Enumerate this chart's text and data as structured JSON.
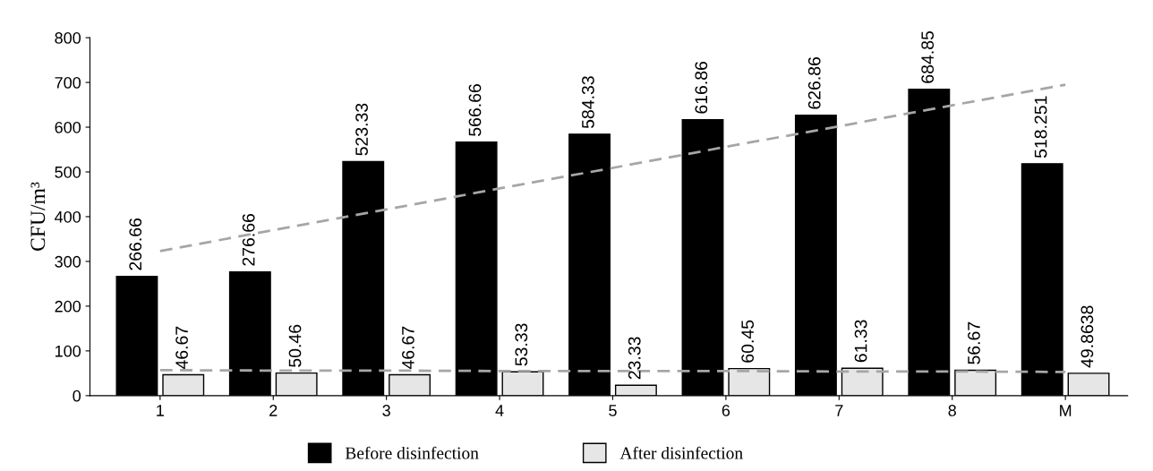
{
  "chart_data": {
    "type": "bar",
    "ylabel": "CFU/m³",
    "categories": [
      "1",
      "2",
      "3",
      "4",
      "5",
      "6",
      "7",
      "8",
      "M"
    ],
    "series": [
      {
        "name": "Before disinfection",
        "color": "#000000",
        "values": [
          266.66,
          276.66,
          523.33,
          566.66,
          584.33,
          616.86,
          626.86,
          684.85,
          518.251
        ],
        "value_labels": [
          "266.66",
          "276.66",
          "523.33",
          "566.66",
          "584.33",
          "616.86",
          "626.86",
          "684.85",
          "518.251"
        ]
      },
      {
        "name": "After disinfection",
        "color": "#e6e6e6",
        "values": [
          46.67,
          50.46,
          46.67,
          53.33,
          23.33,
          60.45,
          61.33,
          56.67,
          49.8638
        ],
        "value_labels": [
          "46.67",
          "50.46",
          "46.67",
          "53.33",
          "23.33",
          "60.45",
          "61.33",
          "56.67",
          "49.8638"
        ]
      },
      {
        "type": "line",
        "color": "#a6a6a6",
        "line_style": "dashed",
        "values": [
          323,
          370,
          416,
          463,
          509,
          556,
          602,
          649,
          695
        ]
      },
      {
        "type": "line",
        "color": "#a6a6a6",
        "line_style": "dashed",
        "values": [
          57,
          56,
          56,
          55,
          55,
          55,
          54,
          54,
          53
        ]
      }
    ],
    "ylim": [
      0,
      800
    ],
    "yticks": [
      0,
      100,
      200,
      300,
      400,
      500,
      600,
      700,
      800
    ],
    "grid": false,
    "legend": "bottom"
  }
}
